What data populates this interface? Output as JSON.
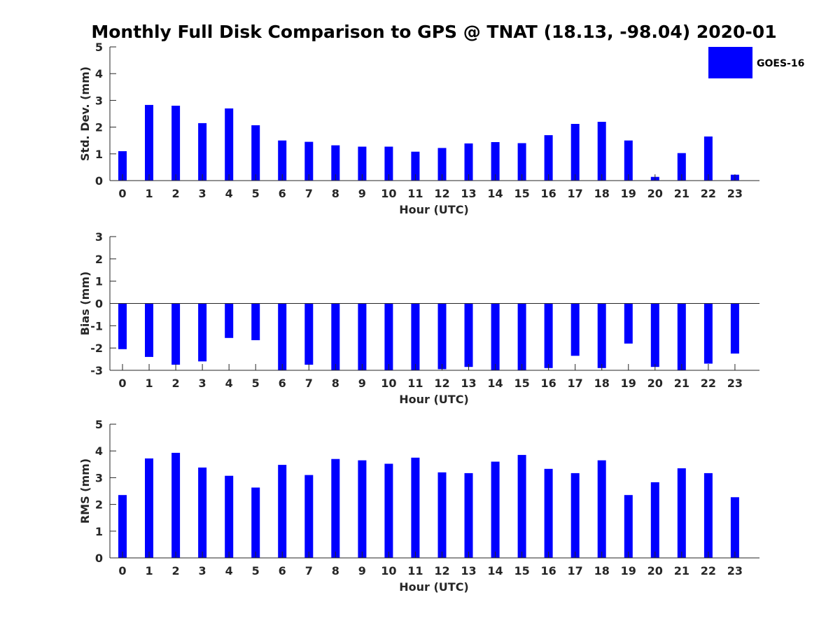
{
  "figure": {
    "title": "Monthly Full Disk Comparison to GPS @ TNAT (18.13, -98.04) 2020-01",
    "bar_color": "#0000ff",
    "legend": {
      "label": "GOES-16",
      "placement": "top-right"
    }
  },
  "chart_data": [
    {
      "type": "bar",
      "categories": [
        "0",
        "1",
        "2",
        "3",
        "4",
        "5",
        "6",
        "7",
        "8",
        "9",
        "10",
        "11",
        "12",
        "13",
        "14",
        "15",
        "16",
        "17",
        "18",
        "19",
        "20",
        "21",
        "22",
        "23"
      ],
      "series": [
        {
          "name": "GOES-16",
          "values": [
            1.1,
            2.83,
            2.8,
            2.15,
            2.7,
            2.07,
            1.5,
            1.45,
            1.32,
            1.27,
            1.27,
            1.08,
            1.22,
            1.39,
            1.44,
            1.4,
            1.7,
            2.12,
            2.2,
            1.5,
            0.14,
            1.03,
            1.65,
            0.22
          ]
        }
      ],
      "xlabel": "Hour (UTC)",
      "ylabel": "Std. Dev. (mm)",
      "ylim": [
        0,
        5
      ],
      "yticks": [
        "0",
        "1",
        "2",
        "3",
        "4",
        "5"
      ],
      "grid": false
    },
    {
      "type": "bar",
      "categories": [
        "0",
        "1",
        "2",
        "3",
        "4",
        "5",
        "6",
        "7",
        "8",
        "9",
        "10",
        "11",
        "12",
        "13",
        "14",
        "15",
        "16",
        "17",
        "18",
        "19",
        "20",
        "21",
        "22",
        "23"
      ],
      "series": [
        {
          "name": "GOES-16",
          "values": [
            -2.05,
            -2.4,
            -2.75,
            -2.6,
            -1.55,
            -1.65,
            -3.0,
            -2.75,
            -3.0,
            -3.0,
            -3.0,
            -3.0,
            -2.95,
            -2.85,
            -3.0,
            -3.0,
            -2.9,
            -2.35,
            -2.9,
            -1.8,
            -2.85,
            -3.0,
            -2.7,
            -2.25
          ]
        }
      ],
      "xlabel": "Hour (UTC)",
      "ylabel": "Bias (mm)",
      "ylim": [
        -3,
        3
      ],
      "yticks": [
        "-3",
        "-2",
        "-1",
        "0",
        "1",
        "2",
        "3"
      ],
      "grid": false
    },
    {
      "type": "bar",
      "categories": [
        "0",
        "1",
        "2",
        "3",
        "4",
        "5",
        "6",
        "7",
        "8",
        "9",
        "10",
        "11",
        "12",
        "13",
        "14",
        "15",
        "16",
        "17",
        "18",
        "19",
        "20",
        "21",
        "22",
        "23"
      ],
      "series": [
        {
          "name": "GOES-16",
          "values": [
            2.35,
            3.72,
            3.93,
            3.38,
            3.07,
            2.63,
            3.48,
            3.1,
            3.7,
            3.65,
            3.52,
            3.75,
            3.2,
            3.17,
            3.6,
            3.85,
            3.33,
            3.17,
            3.65,
            2.35,
            2.83,
            3.35,
            3.17,
            2.27
          ]
        }
      ],
      "xlabel": "Hour (UTC)",
      "ylabel": "RMS (mm)",
      "ylim": [
        0,
        5
      ],
      "yticks": [
        "0",
        "1",
        "2",
        "3",
        "4",
        "5"
      ],
      "grid": false
    }
  ]
}
